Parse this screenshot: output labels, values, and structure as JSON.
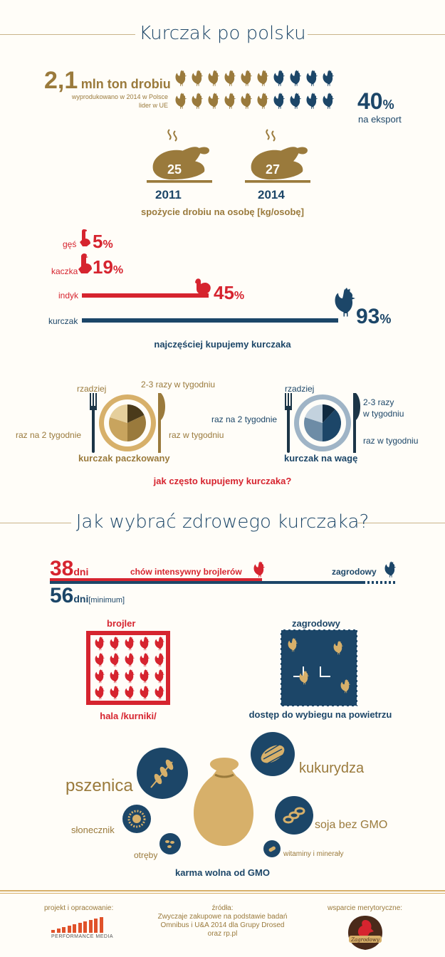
{
  "colors": {
    "gold": "#9a7a3c",
    "navy": "#1c4668",
    "red": "#d6242f",
    "cream": "#fffdf8",
    "light": "#d7b06a"
  },
  "header": {
    "title": "Kurczak po polsku"
  },
  "production": {
    "amount": "2,1",
    "unit": "mln ton drobiu",
    "sub1": "wyprodukowano w 2014 w Polsce",
    "sub2": "lider w UE",
    "export_pct": "40",
    "pct_sign": "%",
    "export_label": "na eksport"
  },
  "consumption": {
    "v2011": "25",
    "y2011": "2011",
    "v2014": "27",
    "y2014": "2014",
    "caption": "spożycie drobiu na osobę [kg/osobę]"
  },
  "purchase_bars": {
    "ges": {
      "label": "gęś",
      "value": "5",
      "pct": "%"
    },
    "kaczka": {
      "label": "kaczka",
      "value": "19",
      "pct": "%"
    },
    "indyk": {
      "label": "indyk",
      "value": "45",
      "pct": "%"
    },
    "kurczak": {
      "label": "kurczak",
      "value": "93",
      "pct": "%"
    },
    "caption": "najczęściej kupujemy kurczaka"
  },
  "frequency": {
    "packed": {
      "rzadziej": "rzadziej",
      "twice_week": "2-3 razy w tygodniu",
      "biweekly": "raz na 2 tygodnie",
      "weekly": "raz w tygodniu",
      "label": "kurczak paczkowany"
    },
    "weighed": {
      "rzadziej": "rzadziej",
      "twice_week_1": "2-3 razy",
      "twice_week_2": "w tygodniu",
      "biweekly": "raz na 2 tygodnie",
      "weekly": "raz w tygodniu",
      "label": "kurczak na wagę"
    },
    "caption": "jak często kupujemy kurczaka?"
  },
  "section2": {
    "title": "Jak wybrać zdrowego kurczaka?"
  },
  "days": {
    "broiler_days": "38",
    "dni": "dni",
    "broiler_label": "chów intensywny brojlerów",
    "free_label": "zagrodowy",
    "free_days": "56",
    "minimum": "[minimum]"
  },
  "housing": {
    "broiler_title": "brojler",
    "broiler_caption": "hala /kurniki/",
    "free_title": "zagrodowy",
    "free_caption": "dostęp do wybiegu na powietrzu"
  },
  "feed": {
    "pszenica": "pszenica",
    "kukurydza": "kukurydza",
    "slonecznik": "słonecznik",
    "soja": "soja bez GMO",
    "otreby": "otręby",
    "witaminy": "witaminy i minerały",
    "caption": "karma wolna od GMO"
  },
  "footer": {
    "project_label": "projekt i opracowanie:",
    "pm_logo": "PERFORMANCE MEDIA",
    "sources_label": "źródła:",
    "sources_1": "Zwyczaje zakupowe na podstawie badań",
    "sources_2": "Omnibus i U&A 2014 dla Grupy Drosed",
    "sources_3": "oraz rp.pl",
    "support_label": "wsparcie merytoryczne:",
    "logo_text": "Zagrodowy"
  }
}
